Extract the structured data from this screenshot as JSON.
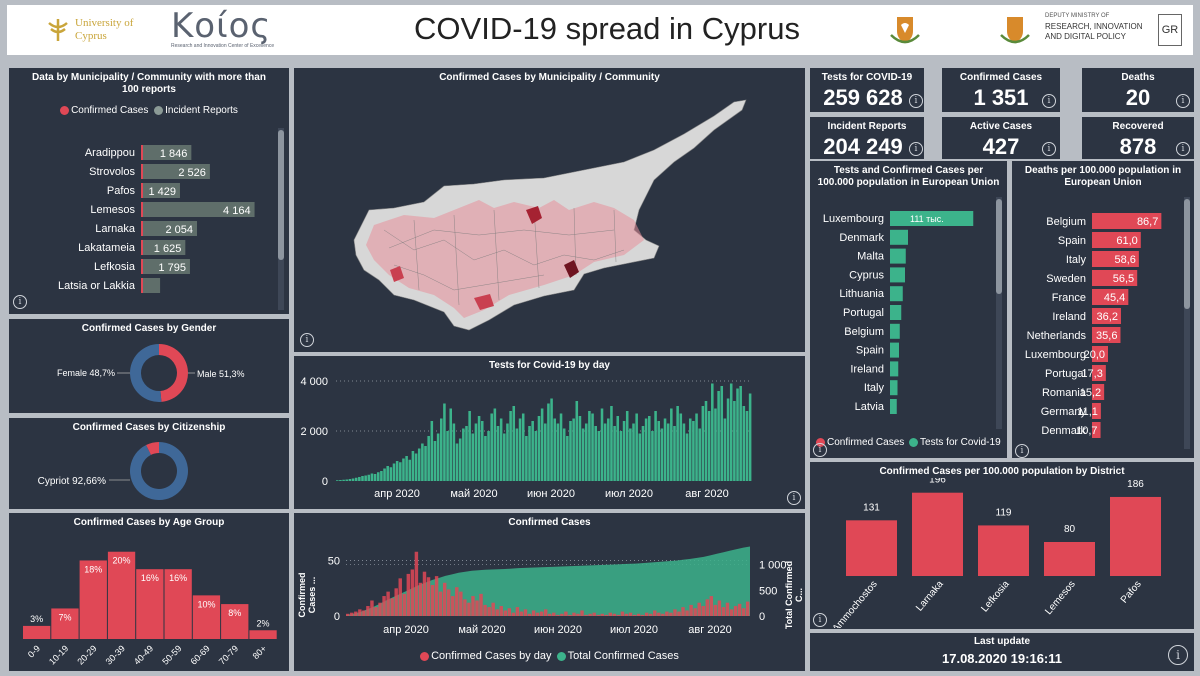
{
  "header": {
    "title": "COVID-19 spread in Cyprus",
    "ucy_logo": "University of Cyprus",
    "koios_logo": "Κοίος",
    "koios_sub": "Research and Innovation Center of Excellence",
    "ministry_lines": [
      "DEPUTY MINISTRY OF",
      "RESEARCH, INNOVATION",
      "AND DIGITAL POLICY"
    ],
    "lang_button": "GR"
  },
  "kpis": [
    {
      "label": "Tests for COVID-19",
      "value": "259 628"
    },
    {
      "label": "Confirmed Cases",
      "value": "1 351"
    },
    {
      "label": "Deaths",
      "value": "20"
    },
    {
      "label": "Incident Reports",
      "value": "204 249"
    },
    {
      "label": "Active Cases",
      "value": "427"
    },
    {
      "label": "Recovered",
      "value": "878"
    }
  ],
  "municipality_panel": {
    "title": "Data by Municipality / Community with more than 100 reports",
    "legend": [
      "Confirmed Cases",
      "Incident Reports"
    ]
  },
  "map_panel": {
    "title": "Confirmed Cases by Municipality / Community"
  },
  "gender_panel": {
    "title": "Confirmed Cases by Gender"
  },
  "citizenship_panel": {
    "title": "Confirmed Cases by Citizenship"
  },
  "age_panel": {
    "title": "Confirmed Cases by Age Group"
  },
  "tests_panel": {
    "title": "Tests for Covid-19 by day"
  },
  "cases_panel": {
    "title": "Confirmed Cases",
    "ylabel_left": "Confirmed Cases ...",
    "ylabel_right": "Total Confirmed C...",
    "legend": [
      "Confirmed Cases by day",
      "Total Confirmed Cases"
    ]
  },
  "eu_tests_panel": {
    "title": "Tests and Confirmed Cases per 100.000 population in European Union",
    "legend": [
      "Confirmed Cases",
      "Tests for Covid-19"
    ]
  },
  "eu_deaths_panel": {
    "title": "Deaths per 100.000 population in European Union"
  },
  "district_panel": {
    "title": "Confirmed Cases per 100.000 population by District"
  },
  "last_update": {
    "label": "Last update",
    "value": "17.08.2020 19:16:11"
  },
  "colors": {
    "confirmed": "#e04856",
    "reports": "#5f6e6a",
    "tests": "#3cb38b",
    "male": "#3f6898",
    "female": "#e04856",
    "map_land": "#d7d7d7",
    "map_light": "#e88f9b",
    "map_dark": "#8e1a28"
  },
  "chart_data": [
    {
      "type": "bar",
      "name": "municipality",
      "categories": [
        "Aradippou",
        "Strovolos",
        "Pafos",
        "Lemesos",
        "Larnaka",
        "Lakatameia",
        "Lefkosia",
        "Latsia or Lakkia"
      ],
      "series": [
        {
          "name": "Confirmed Cases",
          "values": [
            20,
            15,
            5,
            10,
            15,
            5,
            15,
            5
          ]
        },
        {
          "name": "Incident Reports",
          "values": [
            1846,
            2526,
            1429,
            4164,
            2054,
            1625,
            1795,
            700
          ]
        }
      ],
      "data_labels": [
        "1 846",
        "2 526",
        "1 429",
        "4 164",
        "2 054",
        "1 625",
        "1 795",
        ""
      ],
      "xlim": [
        0,
        4400
      ]
    },
    {
      "type": "pie",
      "name": "gender",
      "categories": [
        "Female",
        "Male"
      ],
      "values": [
        48.7,
        51.3
      ],
      "labels": [
        "Female 48,7%",
        "Male 51,3%"
      ]
    },
    {
      "type": "pie",
      "name": "citizenship",
      "categories": [
        "Cypriot",
        "Other"
      ],
      "values": [
        92.66,
        7.34
      ],
      "labels": [
        "Cypriot 92,66%"
      ]
    },
    {
      "type": "bar",
      "name": "age",
      "categories": [
        "0-9",
        "10-19",
        "20-29",
        "30-39",
        "40-49",
        "50-59",
        "60-69",
        "70-79",
        "80+"
      ],
      "values": [
        3,
        7,
        18,
        20,
        16,
        16,
        10,
        8,
        2
      ],
      "data_labels": [
        "3%",
        "7%",
        "18%",
        "20%",
        "16%",
        "16%",
        "10%",
        "8%",
        "2%"
      ],
      "ylim": [
        0,
        22
      ]
    },
    {
      "type": "bar",
      "name": "tests_by_day",
      "x_ticks": [
        "апр 2020",
        "май 2020",
        "июн 2020",
        "июл 2020",
        "авг 2020"
      ],
      "y_ticks": [
        "0",
        "2 000",
        "4 000"
      ],
      "ylim": [
        0,
        4000
      ],
      "values": [
        30,
        40,
        50,
        60,
        80,
        100,
        130,
        160,
        200,
        220,
        250,
        300,
        280,
        350,
        400,
        500,
        600,
        550,
        700,
        800,
        750,
        900,
        1000,
        850,
        1200,
        1100,
        1300,
        1500,
        1400,
        1800,
        2400,
        1600,
        1900,
        2500,
        3100,
        2000,
        2900,
        2300,
        1500,
        1700,
        2100,
        2200,
        2800,
        1900,
        2300,
        2600,
        2400,
        1800,
        2000,
        2700,
        2900,
        2200,
        2500,
        1900,
        2300,
        2800,
        3000,
        2100,
        2500,
        2700,
        1800,
        2200,
        2400,
        2000,
        2600,
        2900,
        2300,
        3100,
        3300,
        2500,
        2300,
        2700,
        2100,
        1800,
        2400,
        2500,
        3200,
        2600,
        2100,
        2300,
        2800,
        2700,
        2200,
        2000,
        2900,
        2300,
        2500,
        3000,
        2200,
        2600,
        2000,
        2400,
        2800,
        2100,
        2300,
        2700,
        1900,
        2200,
        2500,
        2600,
        2000,
        2800,
        2400,
        2100,
        2500,
        2300,
        2900,
        2200,
        3000,
        2700,
        2300,
        1900,
        2500,
        2400,
        2700,
        2100,
        3000,
        3200,
        2800,
        3900,
        2900,
        3600,
        3800,
        2500,
        3300,
        3900,
        3200,
        3700,
        3800,
        3000,
        2800,
        3500
      ]
    },
    {
      "type": "line",
      "name": "confirmed_cases",
      "x_ticks": [
        "апр 2020",
        "май 2020",
        "июн 2020",
        "июл 2020",
        "авг 2020"
      ],
      "y_ticks_left": [
        "0",
        "50"
      ],
      "y_ticks_right": [
        "0",
        "500",
        "1 000"
      ],
      "ylim_left": [
        0,
        65
      ],
      "ylim_right": [
        0,
        1400
      ],
      "series": [
        {
          "name": "Confirmed Cases by day",
          "values": [
            2,
            3,
            4,
            6,
            5,
            9,
            14,
            8,
            12,
            18,
            22,
            16,
            25,
            34,
            20,
            38,
            42,
            58,
            30,
            40,
            35,
            28,
            36,
            22,
            30,
            24,
            18,
            26,
            22,
            15,
            12,
            18,
            14,
            20,
            10,
            8,
            12,
            6,
            9,
            5,
            7,
            3,
            8,
            4,
            6,
            2,
            5,
            3,
            4,
            6,
            2,
            3,
            1,
            2,
            4,
            1,
            3,
            2,
            5,
            1,
            2,
            3,
            1,
            2,
            1,
            3,
            2,
            1,
            4,
            2,
            3,
            1,
            2,
            1,
            3,
            2,
            5,
            3,
            2,
            4,
            3,
            6,
            4,
            8,
            5,
            10,
            7,
            12,
            9,
            15,
            18,
            10,
            14,
            8,
            12,
            6,
            9,
            11,
            7,
            13
          ]
        },
        {
          "name": "Total Confirmed Cases",
          "values": [
            20,
            40,
            70,
            120,
            170,
            230,
            300,
            360,
            420,
            480,
            540,
            600,
            650,
            700,
            740,
            780,
            810,
            840,
            860,
            880,
            890,
            900,
            905,
            910,
            915,
            920,
            930,
            935,
            940,
            945,
            950,
            955,
            960,
            965,
            970,
            975,
            980,
            985,
            990,
            995,
            1000,
            1005,
            1010,
            1015,
            1020,
            1030,
            1040,
            1050,
            1060,
            1070,
            1080,
            1095,
            1110,
            1130,
            1150,
            1180,
            1210,
            1240,
            1270,
            1300,
            1330,
            1351
          ]
        }
      ]
    },
    {
      "type": "bar",
      "name": "eu_tests",
      "categories": [
        "Luxembourg",
        "Denmark",
        "Malta",
        "Cyprus",
        "Lithuania",
        "Portugal",
        "Belgium",
        "Spain",
        "Ireland",
        "Italy",
        "Latvia"
      ],
      "values": [
        111,
        24,
        21,
        20,
        17,
        15,
        13,
        12,
        11,
        10,
        9
      ],
      "data_labels": [
        "111 тыс.",
        "",
        "",
        "",
        "",
        "",
        "",
        "",
        "",
        "",
        ""
      ],
      "xlim": [
        0,
        120
      ]
    },
    {
      "type": "bar",
      "name": "eu_deaths",
      "categories": [
        "Belgium",
        "Spain",
        "Italy",
        "Sweden",
        "France",
        "Ireland",
        "Netherlands",
        "Luxembourg",
        "Portugal",
        "Romania",
        "Germany",
        "Denmark"
      ],
      "values": [
        86.7,
        61.0,
        58.6,
        56.5,
        45.4,
        36.2,
        35.6,
        20.0,
        17.3,
        15.2,
        11.1,
        10.7
      ],
      "data_labels": [
        "86,7",
        "61,0",
        "58,6",
        "56,5",
        "45,4",
        "36,2",
        "35,6",
        "20,0",
        "17,3",
        "15,2",
        "11,1",
        "10,7"
      ],
      "xlim": [
        0,
        95
      ]
    },
    {
      "type": "bar",
      "name": "district",
      "categories": [
        "Ammochostos",
        "Larnaka",
        "Lefkosia",
        "Lemesos",
        "Pafos"
      ],
      "values": [
        131,
        196,
        119,
        80,
        186
      ],
      "data_labels": [
        "131",
        "196",
        "119",
        "80",
        "186"
      ],
      "ylim": [
        0,
        200
      ]
    }
  ]
}
